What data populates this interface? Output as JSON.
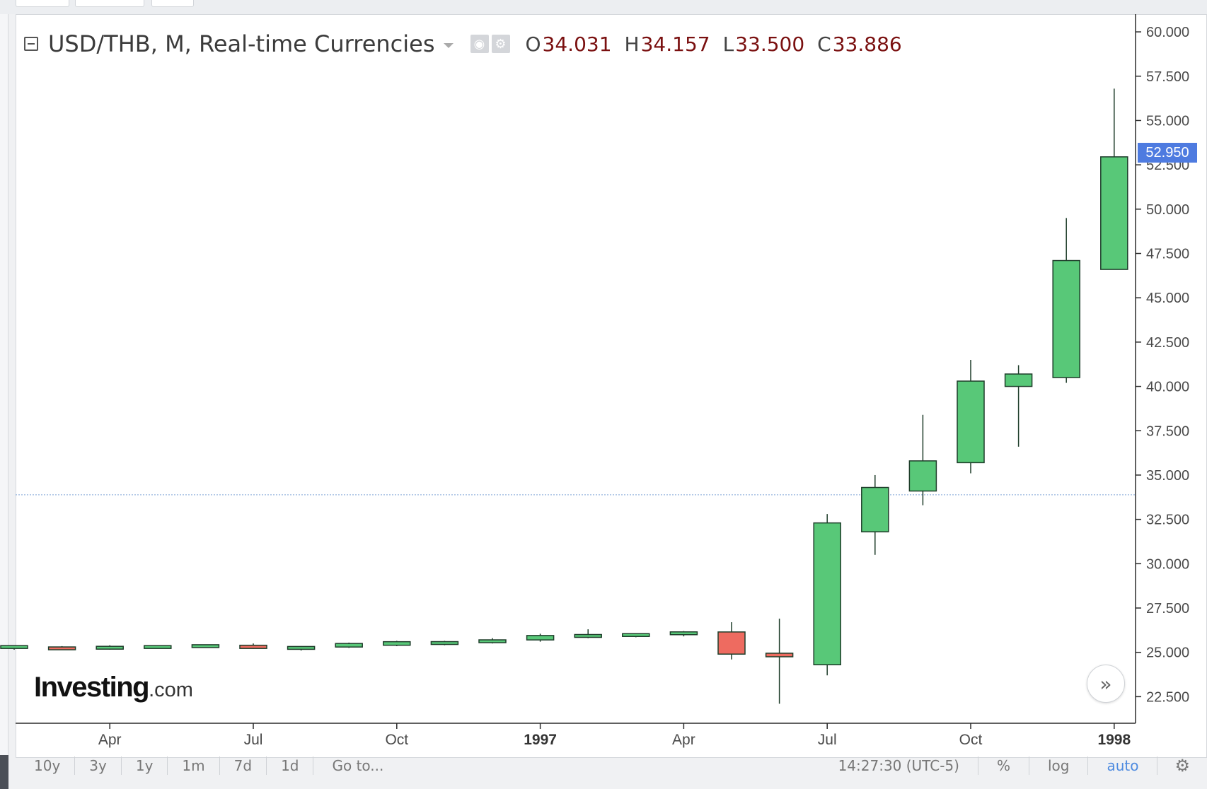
{
  "legend": {
    "title": "USD/THB, M, Real-time Currencies",
    "open_key": "O",
    "open": "34.031",
    "high_key": "H",
    "high": "34.157",
    "low_key": "L",
    "low": "33.500",
    "close_key": "C",
    "close": "33.886",
    "icons": [
      "collapse-icon",
      "caret-down-icon",
      "eye-icon",
      "gear-icon"
    ]
  },
  "watermark": {
    "main": "Investing",
    "domain": ".com"
  },
  "last_price_label": "52.950",
  "toolbar": {
    "ranges": [
      "10y",
      "3y",
      "1y",
      "1m",
      "7d",
      "1d"
    ],
    "goto": "Go to...",
    "time": "14:27:30 (UTC-5)",
    "percent": "%",
    "log": "log",
    "auto": "auto",
    "settings_icon": "gear-icon"
  },
  "colors": {
    "up": "#58c878",
    "down": "#ee6b60",
    "wick": "#1e3d2a",
    "price_line": "#7fa4d6",
    "badge": "#4e7be0"
  },
  "chart_data": {
    "type": "candlestick",
    "symbol": "USD/THB",
    "interval": "M",
    "y_ticks": [
      "22.500",
      "25.000",
      "27.500",
      "30.000",
      "32.500",
      "35.000",
      "37.500",
      "40.000",
      "42.500",
      "45.000",
      "47.500",
      "50.000",
      "52.500",
      "55.000",
      "57.500",
      "60.000"
    ],
    "x_tick_labels": [
      {
        "label": "Apr",
        "index": 2,
        "bold": false
      },
      {
        "label": "Jul",
        "index": 5,
        "bold": false
      },
      {
        "label": "Oct",
        "index": 8,
        "bold": false
      },
      {
        "label": "1997",
        "index": 11,
        "bold": true
      },
      {
        "label": "Apr",
        "index": 14,
        "bold": false
      },
      {
        "label": "Jul",
        "index": 17,
        "bold": false
      },
      {
        "label": "Oct",
        "index": 20,
        "bold": false
      },
      {
        "label": "1998",
        "index": 23,
        "bold": true
      }
    ],
    "y_range": [
      21.0,
      61.0
    ],
    "current_price_line": 33.886,
    "candles": [
      {
        "o": 25.25,
        "h": 25.4,
        "l": 25.15,
        "c": 25.35
      },
      {
        "o": 25.25,
        "h": 25.35,
        "l": 25.15,
        "c": 25.2
      },
      {
        "o": 25.2,
        "h": 25.4,
        "l": 25.15,
        "c": 25.32
      },
      {
        "o": 25.28,
        "h": 25.4,
        "l": 25.22,
        "c": 25.32
      },
      {
        "o": 25.3,
        "h": 25.42,
        "l": 25.25,
        "c": 25.4
      },
      {
        "o": 25.4,
        "h": 25.5,
        "l": 25.2,
        "c": 25.22
      },
      {
        "o": 25.2,
        "h": 25.35,
        "l": 25.1,
        "c": 25.3
      },
      {
        "o": 25.3,
        "h": 25.55,
        "l": 25.25,
        "c": 25.5
      },
      {
        "o": 25.4,
        "h": 25.65,
        "l": 25.35,
        "c": 25.6
      },
      {
        "o": 25.5,
        "h": 25.65,
        "l": 25.4,
        "c": 25.55
      },
      {
        "o": 25.55,
        "h": 25.8,
        "l": 25.5,
        "c": 25.7
      },
      {
        "o": 25.7,
        "h": 26.05,
        "l": 25.6,
        "c": 25.95
      },
      {
        "o": 25.9,
        "h": 26.3,
        "l": 25.8,
        "c": 25.95
      },
      {
        "o": 25.95,
        "h": 26.05,
        "l": 25.85,
        "c": 26.0
      },
      {
        "o": 26.0,
        "h": 26.2,
        "l": 25.9,
        "c": 26.15
      },
      {
        "o": 26.15,
        "h": 26.7,
        "l": 24.6,
        "c": 24.9
      },
      {
        "o": 24.95,
        "h": 26.9,
        "l": 22.1,
        "c": 24.75
      },
      {
        "o": 24.3,
        "h": 32.8,
        "l": 23.7,
        "c": 32.3
      },
      {
        "o": 31.8,
        "h": 35.0,
        "l": 30.5,
        "c": 34.3
      },
      {
        "o": 34.1,
        "h": 38.4,
        "l": 33.3,
        "c": 35.8
      },
      {
        "o": 35.7,
        "h": 41.5,
        "l": 35.1,
        "c": 40.3
      },
      {
        "o": 40.0,
        "h": 41.2,
        "l": 36.6,
        "c": 40.7
      },
      {
        "o": 40.5,
        "h": 49.5,
        "l": 40.2,
        "c": 47.1
      },
      {
        "o": 46.6,
        "h": 56.8,
        "l": 46.6,
        "c": 52.95
      }
    ]
  }
}
